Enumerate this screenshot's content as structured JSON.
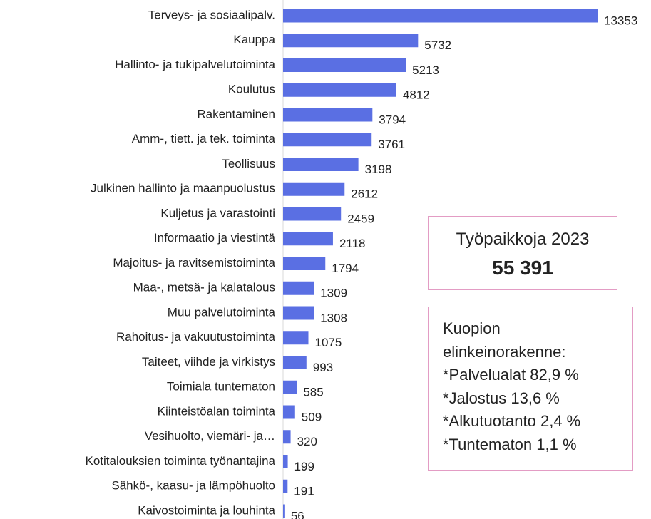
{
  "chart_data": {
    "type": "barh",
    "categories": [
      "Terveys- ja sosiaalipalv.",
      "Kauppa",
      "Hallinto- ja tukipalvelutoiminta",
      "Koulutus",
      "Rakentaminen",
      "Amm-, tiett. ja tek. toiminta",
      "Teollisuus",
      "Julkinen hallinto ja maanpuolustus",
      "Kuljetus ja varastointi",
      "Informaatio ja viestintä",
      "Majoitus- ja ravitsemistoiminta",
      "Maa-, metsä- ja kalatalous",
      "Muu palvelutoiminta",
      "Rahoitus- ja vakuutustoiminta",
      "Taiteet, viihde ja virkistys",
      "Toimiala tuntematon",
      "Kiinteistöalan toiminta",
      "Vesihuolto, viemäri- ja…",
      "Kotitalouksien toiminta työnantajina",
      "Sähkö-, kaasu- ja lämpöhuolto",
      "Kaivostoiminta ja louhinta"
    ],
    "values": [
      13353,
      5732,
      5213,
      4812,
      3794,
      3761,
      3198,
      2612,
      2459,
      2118,
      1794,
      1309,
      1308,
      1075,
      993,
      585,
      509,
      320,
      199,
      191,
      56
    ],
    "color": "#5a6fe3",
    "annotations": [
      {
        "title": "Työpaikkoja 2023",
        "value": "55 391"
      },
      {
        "lines": [
          "Kuopion",
          "elinkeinorakenne:",
          "*Palvelualat 82,9 %",
          "*Jalostus 13,6 %",
          "*Alkutuotanto 2,4 %",
          "*Tuntematon 1,1 %"
        ]
      }
    ]
  }
}
